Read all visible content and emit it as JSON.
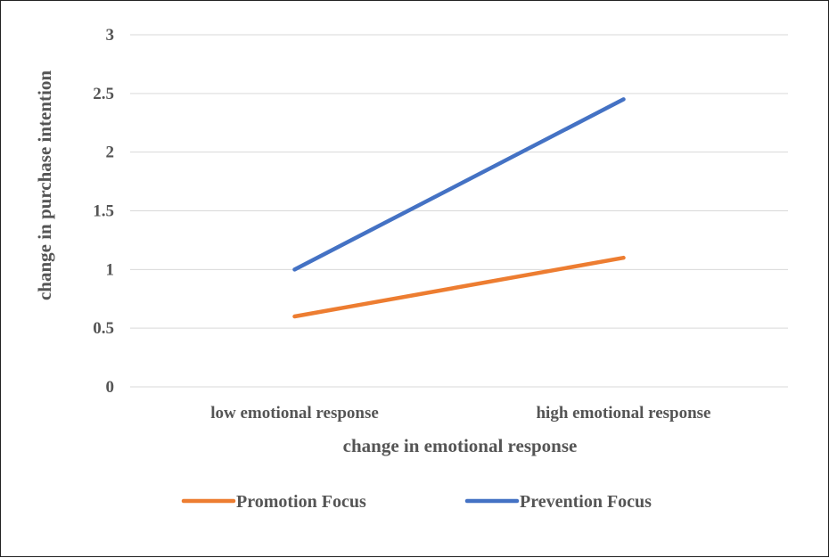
{
  "chart_data": {
    "type": "line",
    "categories": [
      "low emotional response",
      "high emotional response"
    ],
    "series": [
      {
        "name": "Promotion Focus",
        "values": [
          0.6,
          1.1
        ],
        "color": "#ED7D31"
      },
      {
        "name": "Prevention Focus",
        "values": [
          1.0,
          2.45
        ],
        "color": "#4472C4"
      }
    ],
    "xlabel": "change in emotional response",
    "ylabel": "change in purchase intention",
    "ylim": [
      0,
      3
    ],
    "yticks": [
      "0",
      "0.5",
      "1",
      "1.5",
      "2",
      "2.5",
      "3"
    ],
    "grid": true,
    "gridline_color": "#D9D9D9",
    "legend_position": "bottom"
  }
}
